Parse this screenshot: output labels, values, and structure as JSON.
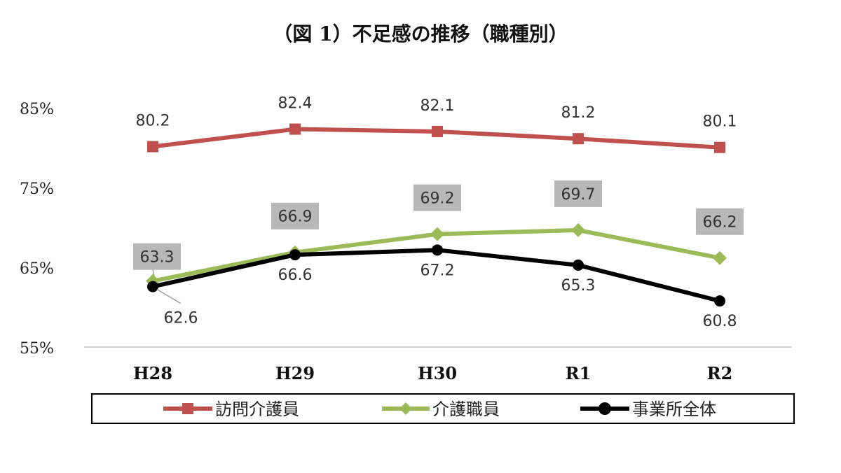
{
  "chart_data": {
    "type": "line",
    "title": "（図 1）不足感の推移（職種別）",
    "categories": [
      "H28",
      "H29",
      "H30",
      "R1",
      "R2"
    ],
    "y_ticks": [
      "85%",
      "75%",
      "65%",
      "55%"
    ],
    "ylim": [
      55,
      85
    ],
    "grid": false,
    "legend_position": "bottom",
    "series": [
      {
        "name": "訪問介護員",
        "values": [
          80.2,
          82.4,
          82.1,
          81.2,
          80.1
        ],
        "color": "#c0504d",
        "marker": "square",
        "label_style": "plain-above"
      },
      {
        "name": "介護職員",
        "values": [
          63.3,
          66.9,
          69.2,
          69.7,
          66.2
        ],
        "color": "#9bbb59",
        "marker": "diamond",
        "label_style": "boxed-above"
      },
      {
        "name": "事業所全体",
        "values": [
          62.6,
          66.6,
          67.2,
          65.3,
          60.8
        ],
        "color": "#000000",
        "marker": "circle",
        "label_style": "plain-below"
      }
    ]
  }
}
